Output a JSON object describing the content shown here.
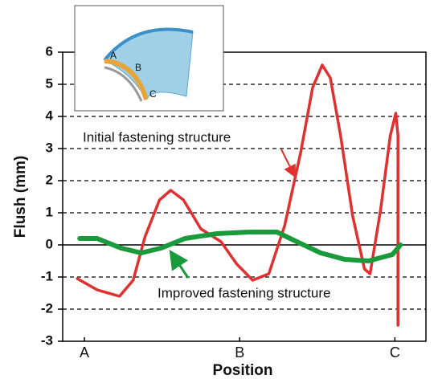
{
  "chart_data": {
    "type": "line",
    "y_label": "Flush (mm)",
    "x_label": "Position",
    "ylim": [
      -3,
      6
    ],
    "yticks": [
      -3,
      -2,
      -1,
      0,
      1,
      2,
      3,
      4,
      5,
      6
    ],
    "xlim": [
      -7,
      110
    ],
    "xticks": [
      {
        "value": 0,
        "label": "A"
      },
      {
        "value": 50,
        "label": "B"
      },
      {
        "value": 100,
        "label": "C"
      }
    ],
    "grid": true,
    "series": [
      {
        "name": "Initial fastening structure",
        "color": "#e03030",
        "x": [
          -2.3,
          4.1,
          11.3,
          15.7,
          19.5,
          24.2,
          27.8,
          31.9,
          37.5,
          44,
          49.1,
          54.2,
          59.4,
          64.5,
          69.7,
          73.5,
          76.6,
          79.2,
          82.5,
          86.4,
          90.2,
          92,
          95.4,
          98.5,
          100.3,
          101,
          101
        ],
        "values": [
          -1.05,
          -1.4,
          -1.6,
          -1.1,
          0.25,
          1.4,
          1.7,
          1.4,
          0.5,
          0.1,
          -0.6,
          -1.1,
          -0.9,
          0.6,
          2.9,
          4.9,
          5.6,
          5.2,
          3.4,
          0.9,
          -0.75,
          -0.9,
          1.1,
          3.4,
          4.1,
          3.4,
          -2.5
        ]
      },
      {
        "name": "Improved fastening structure",
        "color": "#1a9a3a",
        "x": [
          -1.5,
          4.1,
          11.8,
          18.3,
          24.7,
          32.4,
          42.7,
          53,
          62,
          68.4,
          76.1,
          83.8,
          91.5,
          99.2,
          101.8
        ],
        "values": [
          0.2,
          0.2,
          -0.1,
          -0.25,
          -0.1,
          0.2,
          0.35,
          0.4,
          0.4,
          0.1,
          -0.25,
          -0.45,
          -0.5,
          -0.3,
          0
        ]
      }
    ],
    "inset_labels": [
      "A",
      "B",
      "C"
    ]
  }
}
